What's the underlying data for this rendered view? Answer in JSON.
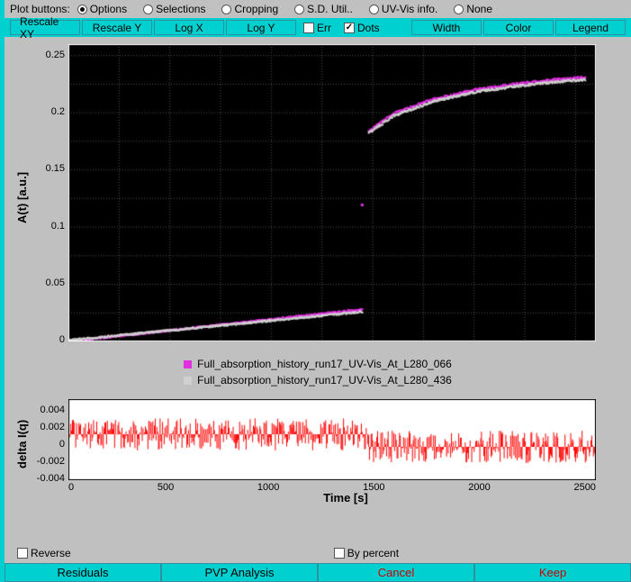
{
  "topbar": {
    "label": "Plot buttons:",
    "radios": [
      {
        "label": "Options",
        "checked": true
      },
      {
        "label": "Selections",
        "checked": false
      },
      {
        "label": "Cropping",
        "checked": false
      },
      {
        "label": "S.D. Util..",
        "checked": false
      },
      {
        "label": "UV-Vis info.",
        "checked": false
      },
      {
        "label": "None",
        "checked": false
      }
    ]
  },
  "toolbar": {
    "rescale_xy": "Rescale XY",
    "rescale_y": "Rescale Y",
    "log_x": "Log X",
    "log_y": "Log Y",
    "err_label": "Err",
    "err_checked": false,
    "dots_label": "Dots",
    "dots_checked": true,
    "width": "Width",
    "color": "Color",
    "legend": "Legend"
  },
  "chart1": {
    "ylabel": "A(t) [a.u.]",
    "yticks": [
      "0.25",
      "0.2",
      "0.15",
      "0.1",
      "0.05",
      "0"
    ],
    "ylim": [
      0,
      0.26
    ],
    "xlim": [
      0,
      2600
    ],
    "bg": "#000000",
    "grid_color": "#505050",
    "series": [
      {
        "color": "#e030e0",
        "points_a": [
          [
            0,
            0.0
          ],
          [
            1450,
            0.028
          ]
        ],
        "points_b": [
          [
            1480,
            0.184
          ],
          [
            1600,
            0.199
          ],
          [
            1800,
            0.212
          ],
          [
            2000,
            0.22
          ],
          [
            2200,
            0.225
          ],
          [
            2400,
            0.229
          ],
          [
            2550,
            0.231
          ]
        ],
        "marker_at": [
          1450,
          0.119
        ]
      },
      {
        "color": "#d0d0d0",
        "points_a": [
          [
            0,
            0.001
          ],
          [
            1450,
            0.026
          ]
        ],
        "points_b": [
          [
            1480,
            0.182
          ],
          [
            1600,
            0.197
          ],
          [
            1800,
            0.21
          ],
          [
            2000,
            0.218
          ],
          [
            2200,
            0.223
          ],
          [
            2400,
            0.227
          ],
          [
            2550,
            0.229
          ]
        ]
      }
    ]
  },
  "legend": [
    {
      "color": "#e030e0",
      "label": "Full_absorption_history_run17_UV-Vis_At_L280_066"
    },
    {
      "color": "#d0d0d0",
      "label": "Full_absorption_history_run17_UV-Vis_At_L280_436"
    }
  ],
  "chart2": {
    "ylabel": "delta I(q)",
    "yticks": [
      "0.004",
      "0.002",
      "0",
      "-0.002",
      "-0.004"
    ],
    "ylim": [
      -0.0045,
      0.0045
    ],
    "xlim": [
      0,
      2600
    ],
    "bg": "#ffffff",
    "color": "#ff0000",
    "baseline_a": 0.0006,
    "baseline_b": -0.0008,
    "noise": 0.0018,
    "transition_x": 1480
  },
  "xticks": [
    "0",
    "500",
    "1000",
    "1500",
    "2000",
    "2500"
  ],
  "xlabel": "Time [s]",
  "bottom_checks": {
    "reverse_label": "Reverse",
    "reverse_checked": false,
    "bypercent_label": "By percent",
    "bypercent_checked": false
  },
  "bottom_buttons": {
    "residuals": "Residuals",
    "pvp": "PVP Analysis",
    "cancel": "Cancel",
    "keep": "Keep"
  }
}
